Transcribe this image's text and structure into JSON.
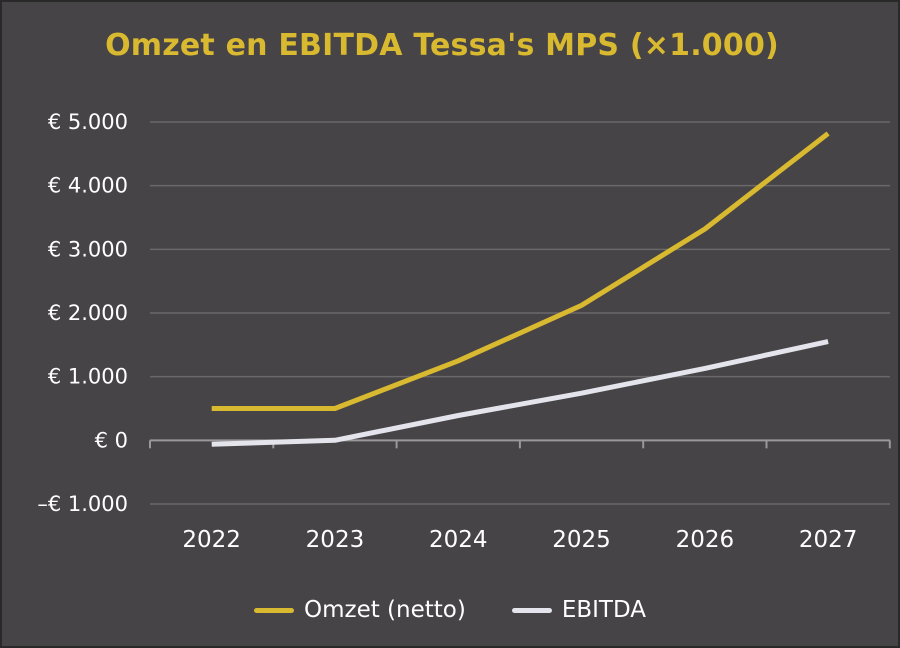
{
  "chart_data": {
    "type": "line",
    "title": "Omzet en EBITDA Tessa's MPS (×1.000)",
    "x": [
      "2022",
      "2023",
      "2024",
      "2025",
      "2026",
      "2027"
    ],
    "series": [
      {
        "name": "Omzet (netto)",
        "color": "#d9b92f",
        "values": [
          500,
          500,
          1250,
          2120,
          3320,
          4820
        ]
      },
      {
        "name": "EBITDA",
        "color": "#e4e4ec",
        "values": [
          -60,
          0,
          390,
          740,
          1130,
          1550
        ]
      }
    ],
    "y_ticks": [
      {
        "value": 5000,
        "label": "€ 5.000"
      },
      {
        "value": 4000,
        "label": "€ 4.000"
      },
      {
        "value": 3000,
        "label": "€ 3.000"
      },
      {
        "value": 2000,
        "label": "€ 2.000"
      },
      {
        "value": 1000,
        "label": "€ 1.000"
      },
      {
        "value": 0,
        "label": "€ 0"
      },
      {
        "value": -1000,
        "label": "–€ 1.000"
      }
    ],
    "ylim": [
      -1000,
      5000
    ],
    "xlabel": "",
    "ylabel": "",
    "grid": true,
    "legend_position": "bottom",
    "colors": {
      "background": "#464446",
      "title": "#d9b92f",
      "grid": "#6a686a",
      "axis": "#9a989a",
      "text": "#ffffff"
    }
  }
}
